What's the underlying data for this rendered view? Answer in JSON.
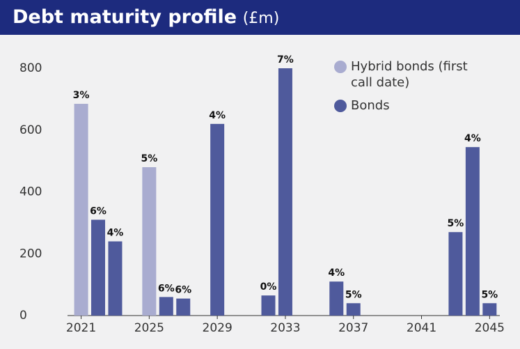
{
  "chart_data": {
    "type": "bar",
    "title": "Debt maturity profile",
    "subtitle": "(£m)",
    "x": [
      2021,
      2022,
      2023,
      2024,
      2025,
      2026,
      2027,
      2028,
      2029,
      2030,
      2031,
      2032,
      2033,
      2034,
      2035,
      2036,
      2037,
      2038,
      2039,
      2040,
      2041,
      2042,
      2043,
      2044,
      2045
    ],
    "xlim": [
      2020.2,
      2045.6
    ],
    "xticks": [
      2021,
      2025,
      2029,
      2033,
      2037,
      2041,
      2045
    ],
    "ylim": [
      0,
      800
    ],
    "yticks": [
      0,
      200,
      400,
      600,
      800
    ],
    "grid": false,
    "legend": "upper right",
    "series": [
      {
        "name": "Hybrid bonds (first call date)",
        "color": "#a9acd0",
        "values": [
          685,
          null,
          null,
          null,
          480,
          null,
          null,
          null,
          null,
          null,
          null,
          null,
          null,
          null,
          null,
          null,
          null,
          null,
          null,
          null,
          null,
          null,
          null,
          null,
          null
        ],
        "value_labels": [
          "3%",
          null,
          null,
          null,
          "5%",
          null,
          null,
          null,
          null,
          null,
          null,
          null,
          null,
          null,
          null,
          null,
          null,
          null,
          null,
          null,
          null,
          null,
          null,
          null,
          null
        ]
      },
      {
        "name": "Bonds",
        "color": "#4f5a9c",
        "values": [
          null,
          310,
          240,
          null,
          null,
          60,
          55,
          null,
          620,
          null,
          null,
          65,
          800,
          null,
          null,
          110,
          40,
          null,
          null,
          null,
          null,
          null,
          270,
          545,
          40
        ],
        "value_labels": [
          null,
          "6%",
          "4%",
          null,
          null,
          "6%",
          "6%",
          null,
          "4%",
          null,
          null,
          "0%",
          "7%",
          null,
          null,
          "4%",
          "5%",
          null,
          null,
          null,
          null,
          null,
          "5%",
          "4%",
          "5%"
        ]
      }
    ]
  }
}
